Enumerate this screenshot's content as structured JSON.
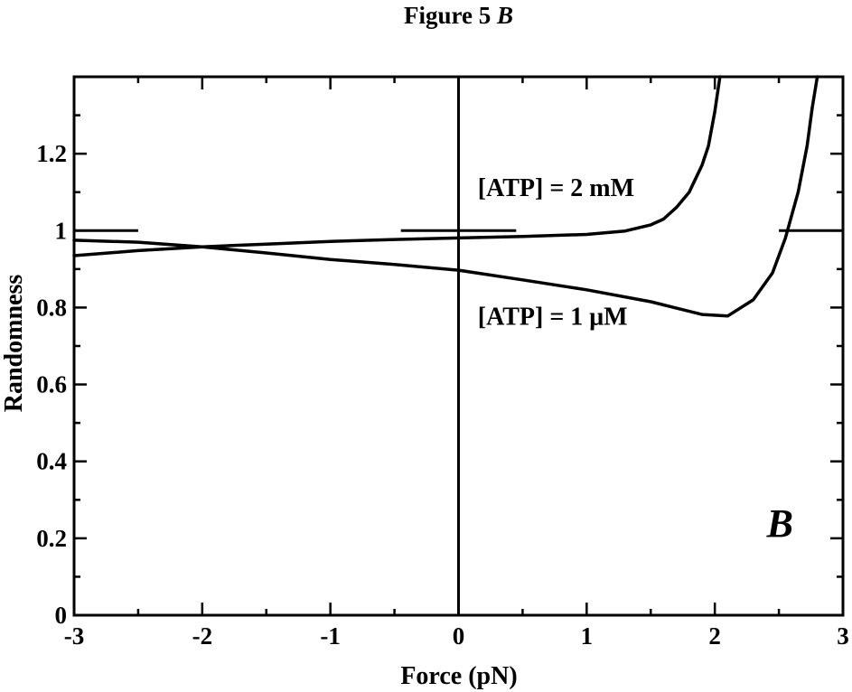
{
  "figure_title": {
    "prefix": "Figure 5",
    "letter": "B"
  },
  "chart_data": {
    "type": "line",
    "xlabel": "Force (pN)",
    "ylabel": "Randomness",
    "xlim": [
      -3,
      3
    ],
    "ylim": [
      0,
      1.4
    ],
    "xticks": [
      -3,
      -2,
      -1,
      0,
      1,
      2,
      3
    ],
    "xtick_labels": [
      "-3",
      "-2",
      "-1",
      "0",
      "1",
      "2",
      "3"
    ],
    "yticks": [
      0,
      0.2,
      0.4,
      0.6,
      0.8,
      1,
      1.2
    ],
    "ytick_labels": [
      "0",
      "0.2",
      "0.4",
      "0.6",
      "0.8",
      "1",
      "1.2"
    ],
    "panel_label": "B",
    "grid": false,
    "series": [
      {
        "name": "[ATP] = 2 mM",
        "x": [
          -3,
          -2.5,
          -2,
          -1.5,
          -1,
          -0.5,
          0,
          0.5,
          1,
          1.3,
          1.5,
          1.6,
          1.7,
          1.8,
          1.9,
          1.95,
          2.0,
          2.04
        ],
        "y": [
          0.935,
          0.948,
          0.958,
          0.965,
          0.972,
          0.977,
          0.981,
          0.985,
          0.99,
          0.999,
          1.015,
          1.03,
          1.06,
          1.1,
          1.17,
          1.22,
          1.31,
          1.41
        ]
      },
      {
        "name": "[ATP] = 1 μM",
        "x": [
          -3,
          -2.5,
          -2,
          -1.5,
          -1,
          -0.5,
          0,
          0.5,
          1,
          1.5,
          1.9,
          2.1,
          2.3,
          2.45,
          2.55,
          2.65,
          2.72,
          2.76,
          2.8
        ],
        "y": [
          0.975,
          0.97,
          0.958,
          0.942,
          0.925,
          0.912,
          0.897,
          0.872,
          0.846,
          0.815,
          0.782,
          0.778,
          0.82,
          0.89,
          0.98,
          1.1,
          1.22,
          1.32,
          1.41
        ]
      }
    ],
    "reference_marks": [
      {
        "x": [
          -3,
          -2.5
        ],
        "y": [
          1,
          1
        ]
      },
      {
        "x": [
          -0.45,
          0.45
        ],
        "y": [
          1,
          1
        ]
      },
      {
        "x": [
          2.5,
          3
        ],
        "y": [
          1,
          1
        ]
      },
      {
        "x": [
          0,
          0
        ],
        "y": [
          0,
          1.4
        ]
      }
    ],
    "annotations": [
      {
        "text": "[ATP] = 2 mM",
        "x": 0.15,
        "y": 1.09
      },
      {
        "text": "[ATP] = 1 μM",
        "x": 0.15,
        "y": 0.755
      }
    ]
  }
}
